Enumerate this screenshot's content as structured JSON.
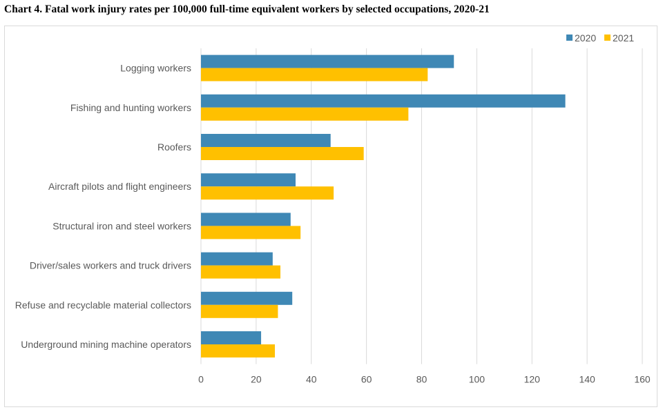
{
  "chart_data": {
    "type": "bar",
    "orientation": "horizontal",
    "title": "Chart 4. Fatal work injury rates per 100,000 full-time equivalent workers by selected occupations, 2020-21",
    "categories": [
      "Logging workers",
      "Fishing and hunting workers",
      "Roofers",
      "Aircraft pilots and flight engineers",
      "Structural iron and steel workers",
      "Driver/sales workers and truck drivers",
      "Refuse and recyclable material collectors",
      "Underground mining machine operators"
    ],
    "series": [
      {
        "name": "2020",
        "color": "#3f88b5",
        "values": [
          91.7,
          132.1,
          47.0,
          34.3,
          32.5,
          26.0,
          33.1,
          21.8
        ]
      },
      {
        "name": "2021",
        "color": "#ffc000",
        "values": [
          82.2,
          75.2,
          59.0,
          48.1,
          36.1,
          28.8,
          27.9,
          26.8
        ]
      }
    ],
    "xlim": [
      0,
      160
    ],
    "xticks": [
      0,
      20,
      40,
      60,
      80,
      100,
      120,
      140,
      160
    ],
    "grid": true,
    "legend": "top-right"
  }
}
